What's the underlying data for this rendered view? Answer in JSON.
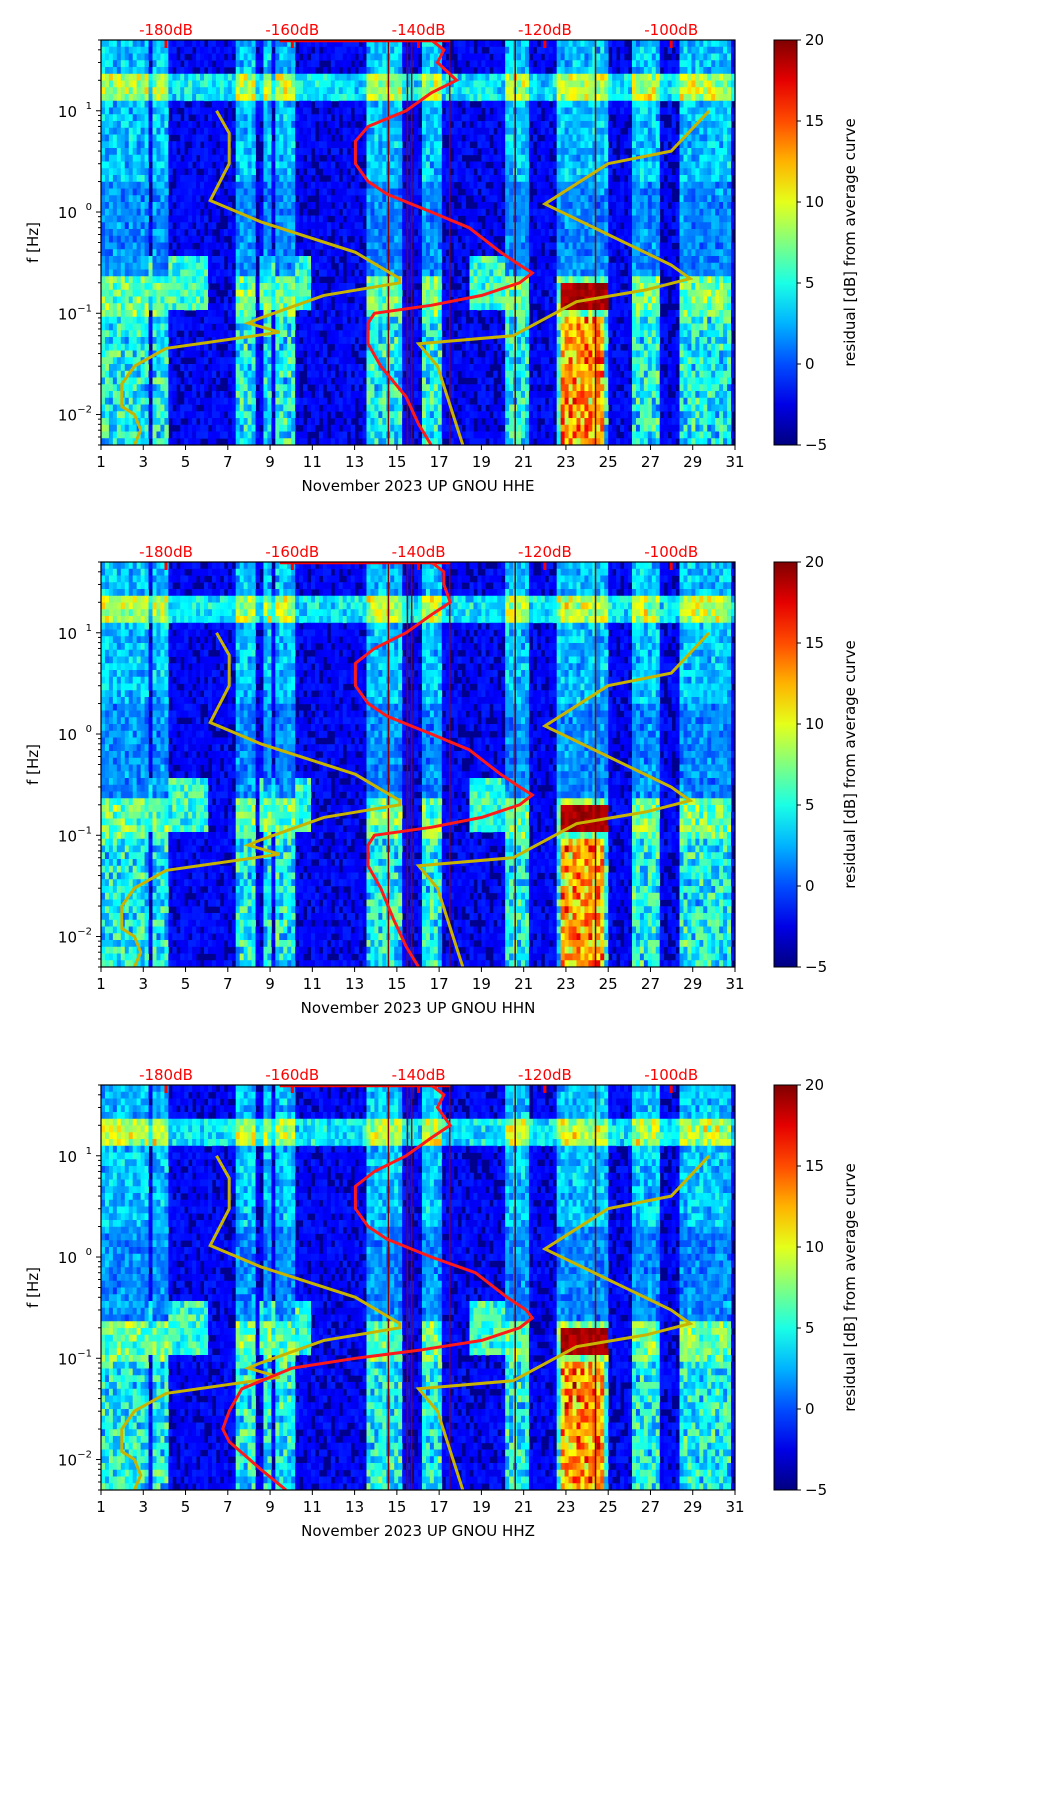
{
  "figure": {
    "title": "",
    "colors": {
      "db_scale": "#ff0000",
      "psd_curve": "#ff1a1a",
      "noise_model": "#c8b400",
      "event_line": "#8b0000",
      "axis": "#000000"
    }
  },
  "chart_data": [
    {
      "type": "heatmap",
      "xlabel": "November 2023 UP GNOU  HHE",
      "ylabel": "f [Hz]",
      "xlim": [
        1,
        31
      ],
      "ylim": [
        0.005,
        50
      ],
      "yscale": "log",
      "x_ticks": [
        "1",
        "3",
        "5",
        "7",
        "9",
        "11",
        "13",
        "15",
        "17",
        "19",
        "21",
        "23",
        "25",
        "27",
        "29",
        "31"
      ],
      "y_ticks": [
        {
          "exp": "1",
          "value": 10
        },
        {
          "exp": "0",
          "value": 1
        },
        {
          "exp": "−1",
          "value": 0.1
        },
        {
          "exp": "−2",
          "value": 0.01
        }
      ],
      "top_ticks": [
        "-180dB",
        "-160dB",
        "-140dB",
        "-120dB",
        "-100dB"
      ],
      "colorbar": {
        "label": "residual [dB] from average curve",
        "range": [
          -5,
          20
        ],
        "ticks": [
          "20",
          "15",
          "10",
          "5",
          "0",
          "−5"
        ]
      },
      "psd_curve_db": [
        [
          50,
          -138
        ],
        [
          40,
          -136
        ],
        [
          30,
          -137
        ],
        [
          20,
          -134
        ],
        [
          15,
          -138
        ],
        [
          10,
          -142
        ],
        [
          7,
          -148
        ],
        [
          5,
          -150
        ],
        [
          3,
          -150
        ],
        [
          2,
          -148
        ],
        [
          1.5,
          -145
        ],
        [
          1,
          -138
        ],
        [
          0.7,
          -132
        ],
        [
          0.4,
          -127
        ],
        [
          0.3,
          -124
        ],
        [
          0.25,
          -122
        ],
        [
          0.2,
          -124
        ],
        [
          0.15,
          -130
        ],
        [
          0.12,
          -138
        ],
        [
          0.1,
          -147
        ],
        [
          0.08,
          -148
        ],
        [
          0.05,
          -148
        ],
        [
          0.03,
          -146
        ],
        [
          0.015,
          -142
        ],
        [
          0.008,
          -140
        ],
        [
          0.005,
          -138
        ]
      ],
      "noise_model_db": {
        "low": [
          [
            10,
            -172
          ],
          [
            6,
            -170
          ],
          [
            3,
            -170
          ],
          [
            1.3,
            -173
          ],
          [
            0.8,
            -165
          ],
          [
            0.4,
            -150
          ],
          [
            0.22,
            -143
          ],
          [
            0.2,
            -143
          ],
          [
            0.15,
            -155
          ],
          [
            0.09,
            -165
          ],
          [
            0.08,
            -167
          ],
          [
            0.065,
            -162
          ],
          [
            0.045,
            -180
          ],
          [
            0.03,
            -185
          ],
          [
            0.02,
            -187
          ],
          [
            0.012,
            -187
          ],
          [
            0.01,
            -185
          ],
          [
            0.007,
            -184
          ],
          [
            0.005,
            -185
          ]
        ],
        "high": [
          [
            10,
            -94
          ],
          [
            4,
            -100
          ],
          [
            3,
            -110
          ],
          [
            1.2,
            -120
          ],
          [
            0.6,
            -110
          ],
          [
            0.3,
            -100
          ],
          [
            0.22,
            -97
          ],
          [
            0.17,
            -104
          ],
          [
            0.13,
            -115
          ],
          [
            0.06,
            -125
          ],
          [
            0.05,
            -140
          ],
          [
            0.03,
            -137
          ],
          [
            0.005,
            -133
          ]
        ]
      },
      "event_lines_day": [
        14.6,
        15.5,
        15.7,
        17.5,
        20.6,
        24.4
      ]
    },
    {
      "type": "heatmap",
      "xlabel": "November 2023 UP GNOU  HHN",
      "ylabel": "f [Hz]",
      "xlim": [
        1,
        31
      ],
      "ylim": [
        0.005,
        50
      ],
      "yscale": "log",
      "x_ticks": [
        "1",
        "3",
        "5",
        "7",
        "9",
        "11",
        "13",
        "15",
        "17",
        "19",
        "21",
        "23",
        "25",
        "27",
        "29",
        "31"
      ],
      "y_ticks": [
        {
          "exp": "1",
          "value": 10
        },
        {
          "exp": "0",
          "value": 1
        },
        {
          "exp": "−1",
          "value": 0.1
        },
        {
          "exp": "−2",
          "value": 0.01
        }
      ],
      "top_ticks": [
        "-180dB",
        "-160dB",
        "-140dB",
        "-120dB",
        "-100dB"
      ],
      "colorbar": {
        "label": "residual [dB] from average curve",
        "range": [
          -5,
          20
        ],
        "ticks": [
          "20",
          "15",
          "10",
          "5",
          "0",
          "−5"
        ]
      },
      "psd_curve_db": [
        [
          50,
          -138
        ],
        [
          40,
          -136
        ],
        [
          30,
          -136
        ],
        [
          20,
          -135
        ],
        [
          15,
          -138
        ],
        [
          10,
          -142
        ],
        [
          7,
          -147
        ],
        [
          5,
          -150
        ],
        [
          3,
          -150
        ],
        [
          2,
          -148
        ],
        [
          1.5,
          -145
        ],
        [
          1,
          -138
        ],
        [
          0.7,
          -132
        ],
        [
          0.4,
          -127
        ],
        [
          0.3,
          -124
        ],
        [
          0.25,
          -122
        ],
        [
          0.2,
          -124
        ],
        [
          0.15,
          -130
        ],
        [
          0.12,
          -138
        ],
        [
          0.1,
          -147
        ],
        [
          0.08,
          -148
        ],
        [
          0.05,
          -148
        ],
        [
          0.03,
          -146
        ],
        [
          0.015,
          -144
        ],
        [
          0.008,
          -142
        ],
        [
          0.005,
          -140
        ]
      ],
      "noise_model_db": {
        "low": [
          [
            10,
            -172
          ],
          [
            6,
            -170
          ],
          [
            3,
            -170
          ],
          [
            1.3,
            -173
          ],
          [
            0.8,
            -165
          ],
          [
            0.4,
            -150
          ],
          [
            0.22,
            -143
          ],
          [
            0.2,
            -143
          ],
          [
            0.15,
            -155
          ],
          [
            0.09,
            -165
          ],
          [
            0.08,
            -167
          ],
          [
            0.065,
            -162
          ],
          [
            0.045,
            -180
          ],
          [
            0.03,
            -185
          ],
          [
            0.02,
            -187
          ],
          [
            0.012,
            -187
          ],
          [
            0.01,
            -185
          ],
          [
            0.007,
            -184
          ],
          [
            0.005,
            -185
          ]
        ],
        "high": [
          [
            10,
            -94
          ],
          [
            4,
            -100
          ],
          [
            3,
            -110
          ],
          [
            1.2,
            -120
          ],
          [
            0.6,
            -110
          ],
          [
            0.3,
            -100
          ],
          [
            0.22,
            -97
          ],
          [
            0.17,
            -104
          ],
          [
            0.13,
            -115
          ],
          [
            0.06,
            -125
          ],
          [
            0.05,
            -140
          ],
          [
            0.03,
            -137
          ],
          [
            0.005,
            -133
          ]
        ]
      },
      "event_lines_day": [
        14.6,
        15.5,
        15.7,
        17.5,
        20.6,
        24.4
      ]
    },
    {
      "type": "heatmap",
      "xlabel": "November 2023 UP GNOU  HHZ",
      "ylabel": "f [Hz]",
      "xlim": [
        1,
        31
      ],
      "ylim": [
        0.005,
        50
      ],
      "yscale": "log",
      "x_ticks": [
        "1",
        "3",
        "5",
        "7",
        "9",
        "11",
        "13",
        "15",
        "17",
        "19",
        "21",
        "23",
        "25",
        "27",
        "29",
        "31"
      ],
      "y_ticks": [
        {
          "exp": "1",
          "value": 10
        },
        {
          "exp": "0",
          "value": 1
        },
        {
          "exp": "−1",
          "value": 0.1
        },
        {
          "exp": "−2",
          "value": 0.01
        }
      ],
      "top_ticks": [
        "-180dB",
        "-160dB",
        "-140dB",
        "-120dB",
        "-100dB"
      ],
      "colorbar": {
        "label": "residual [dB] from average curve",
        "range": [
          -5,
          20
        ],
        "ticks": [
          "20",
          "15",
          "10",
          "5",
          "0",
          "−5"
        ]
      },
      "psd_curve_db": [
        [
          50,
          -138
        ],
        [
          40,
          -136
        ],
        [
          30,
          -137
        ],
        [
          20,
          -135
        ],
        [
          15,
          -138
        ],
        [
          10,
          -142
        ],
        [
          7,
          -147
        ],
        [
          5,
          -150
        ],
        [
          3,
          -150
        ],
        [
          2,
          -148
        ],
        [
          1.5,
          -145
        ],
        [
          1,
          -138
        ],
        [
          0.7,
          -131
        ],
        [
          0.4,
          -126
        ],
        [
          0.3,
          -123
        ],
        [
          0.25,
          -122
        ],
        [
          0.2,
          -124
        ],
        [
          0.15,
          -130
        ],
        [
          0.12,
          -140
        ],
        [
          0.1,
          -150
        ],
        [
          0.08,
          -160
        ],
        [
          0.05,
          -168
        ],
        [
          0.03,
          -170
        ],
        [
          0.02,
          -171
        ],
        [
          0.015,
          -170
        ],
        [
          0.008,
          -165
        ],
        [
          0.005,
          -161
        ]
      ],
      "noise_model_db": {
        "low": [
          [
            10,
            -172
          ],
          [
            6,
            -170
          ],
          [
            3,
            -170
          ],
          [
            1.3,
            -173
          ],
          [
            0.8,
            -165
          ],
          [
            0.4,
            -150
          ],
          [
            0.22,
            -143
          ],
          [
            0.2,
            -143
          ],
          [
            0.15,
            -155
          ],
          [
            0.09,
            -165
          ],
          [
            0.08,
            -167
          ],
          [
            0.065,
            -162
          ],
          [
            0.045,
            -180
          ],
          [
            0.03,
            -185
          ],
          [
            0.02,
            -187
          ],
          [
            0.012,
            -187
          ],
          [
            0.01,
            -185
          ],
          [
            0.007,
            -184
          ],
          [
            0.005,
            -185
          ]
        ],
        "high": [
          [
            10,
            -94
          ],
          [
            4,
            -100
          ],
          [
            3,
            -110
          ],
          [
            1.2,
            -120
          ],
          [
            0.6,
            -110
          ],
          [
            0.3,
            -100
          ],
          [
            0.22,
            -97
          ],
          [
            0.17,
            -104
          ],
          [
            0.13,
            -115
          ],
          [
            0.06,
            -125
          ],
          [
            0.05,
            -140
          ],
          [
            0.03,
            -137
          ],
          [
            0.005,
            -133
          ]
        ]
      },
      "event_lines_day": [
        14.6,
        15.5,
        15.7,
        17.5,
        20.6,
        24.4
      ]
    }
  ]
}
